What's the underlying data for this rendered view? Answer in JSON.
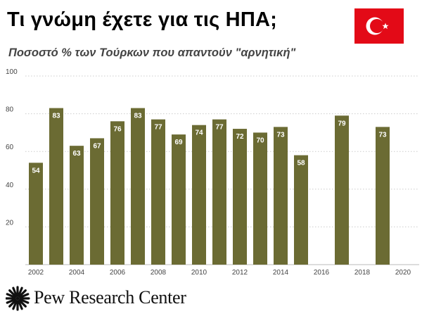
{
  "header": {
    "title": "Τι γνώμη έχετε για τις ΗΠΑ;",
    "subtitle": "Ποσοστό % των Τούρκων που απαντούν \"αρνητική\""
  },
  "flag": {
    "icon": "turkey-flag-icon",
    "background": "#E30A17",
    "emblem": "#ffffff"
  },
  "footer": {
    "logo_icon": "pew-sunburst-icon",
    "brand": "Pew Research Center"
  },
  "colors": {
    "bar": "#6b6b33",
    "grid": "#cccccc",
    "axis_text": "#444444",
    "label": "#ffffff"
  },
  "chart_data": {
    "type": "bar",
    "x": [
      2002,
      2003,
      2004,
      2005,
      2006,
      2007,
      2008,
      2009,
      2010,
      2011,
      2012,
      2013,
      2014,
      2015,
      2017,
      2019
    ],
    "values": [
      54,
      83,
      63,
      67,
      76,
      83,
      77,
      69,
      74,
      77,
      72,
      70,
      73,
      58,
      79,
      73
    ],
    "xticks": [
      "2002",
      "2004",
      "2006",
      "2008",
      "2010",
      "2012",
      "2014",
      "2016",
      "2018",
      "2020"
    ],
    "yticks": [
      "20",
      "40",
      "60",
      "80",
      "100"
    ],
    "xlim": [
      2001,
      2021
    ],
    "ylim": [
      0,
      100
    ],
    "grid": true,
    "title": "Τι γνώμη έχετε για τις ΗΠΑ;",
    "subtitle": "Ποσοστό % των Τούρκων που απαντούν \"αρνητική\"",
    "xlabel": "",
    "ylabel": ""
  }
}
